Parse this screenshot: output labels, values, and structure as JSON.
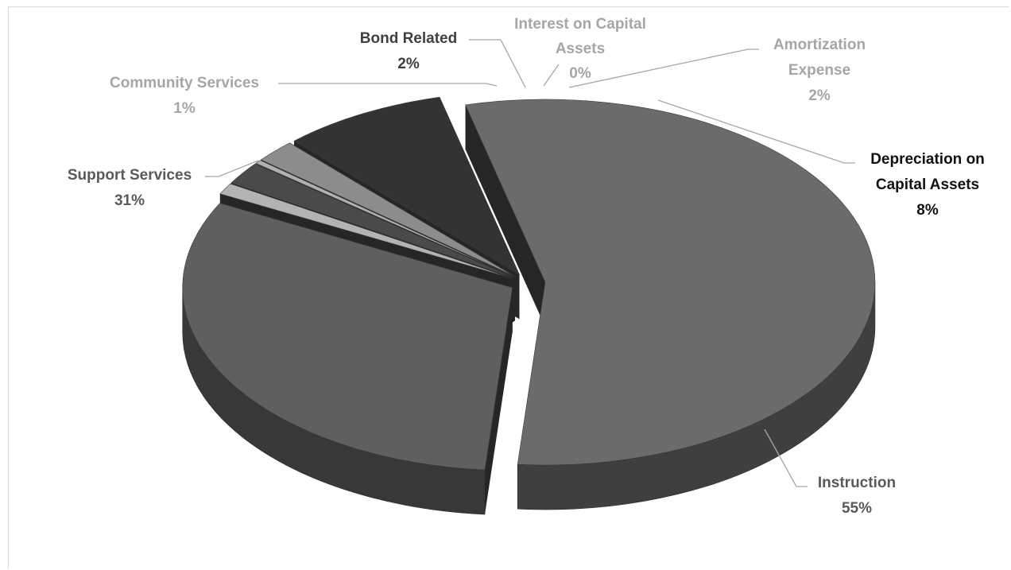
{
  "chart_data": {
    "type": "pie",
    "title": "",
    "legend": "none",
    "slices": [
      {
        "label": "Instruction",
        "value": 55,
        "value_label": "55%",
        "color": "#6b6b6b",
        "side_color": "#3f3f3f",
        "label_color": "#595959"
      },
      {
        "label": "Support Services",
        "value": 31,
        "value_label": "31%",
        "color": "#5f5f5f",
        "side_color": "#383838",
        "label_color": "#595959"
      },
      {
        "label": "Community Services",
        "value": 1,
        "value_label": "1%",
        "color": "#b3b3b3",
        "side_color": "#8a8a8a",
        "label_color": "#a6a6a6"
      },
      {
        "label": "Bond Related",
        "value": 2,
        "value_label": "2%",
        "color": "#4a4a4a",
        "side_color": "#2e2e2e",
        "label_color": "#404040"
      },
      {
        "label": "Interest on Capital Assets",
        "value": 0,
        "value_label": "0%",
        "color": "#b0b0b0",
        "side_color": "#8c8c8c",
        "label_color": "#a6a6a6"
      },
      {
        "label": "Amortization Expense",
        "value": 2,
        "value_label": "2%",
        "color": "#8c8c8c",
        "side_color": "#666666",
        "label_color": "#a6a6a6"
      },
      {
        "label": "Depreciation on Capital Assets",
        "value": 8,
        "value_label": "8%",
        "color": "#333333",
        "side_color": "#1e1e1e",
        "label_color": "#111111"
      }
    ]
  }
}
